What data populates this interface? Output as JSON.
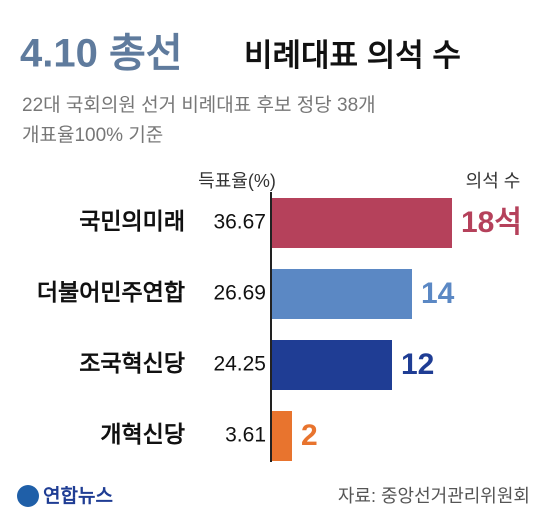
{
  "header": {
    "title_highlight": "4.10 총선",
    "title": "비례대표 의석 수",
    "subtitle_lines": [
      "22대 국회의원 선거 비례대표 후보 정당 38개",
      "개표율100% 기준"
    ]
  },
  "chart_data": {
    "type": "bar",
    "orientation": "horizontal",
    "categories": [
      "국민의미래",
      "더불어민주연합",
      "조국혁신당",
      "개혁신당"
    ],
    "values": [
      18,
      14,
      12,
      2
    ],
    "value_labels": [
      "18석",
      "14",
      "12",
      "2"
    ],
    "colors": [
      "#b5415b",
      "#5b88c4",
      "#1f3d94",
      "#e8742e"
    ],
    "value_axis_label": "의석 수",
    "vote_share_label": "득표율(%)",
    "vote_share": [
      36.67,
      26.69,
      24.25,
      3.61
    ]
  },
  "footer": {
    "logo": "연합뉴스",
    "source": "자료: 중앙선거관리위원회"
  }
}
